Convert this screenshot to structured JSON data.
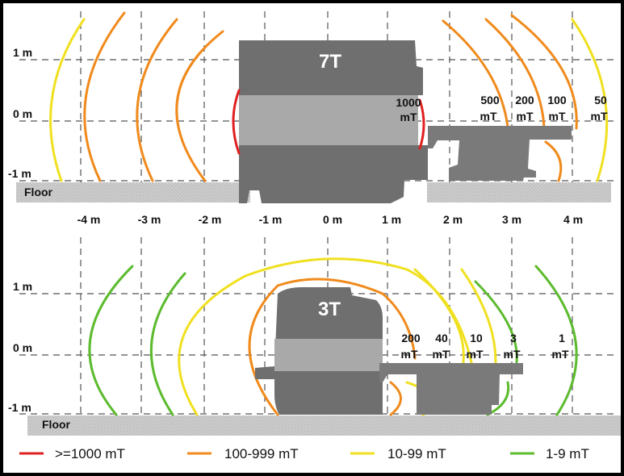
{
  "top_panel": {
    "magnet_label": "7T",
    "y_labels": [
      "1 m",
      "0 m",
      "-1 m"
    ],
    "floor_label": "Floor",
    "x_labels": [
      "-4 m",
      "-3 m",
      "-2 m",
      "-1 m",
      "0 m",
      "1 m",
      "2 m",
      "3 m",
      "4 m"
    ],
    "field_labels": [
      {
        "value": "1000",
        "unit": "mT"
      },
      {
        "value": "500",
        "unit": "mT"
      },
      {
        "value": "200",
        "unit": "mT"
      },
      {
        "value": "100",
        "unit": "mT"
      },
      {
        "value": "50",
        "unit": "mT"
      }
    ]
  },
  "bottom_panel": {
    "magnet_label": "3T",
    "y_labels": [
      "1 m",
      "0 m",
      "-1 m"
    ],
    "floor_label": "Floor",
    "field_labels": [
      {
        "value": "200",
        "unit": "mT"
      },
      {
        "value": "40",
        "unit": "mT"
      },
      {
        "value": "10",
        "unit": "mT"
      },
      {
        "value": "3",
        "unit": "mT"
      },
      {
        "value": "1",
        "unit": "mT"
      }
    ]
  },
  "legend": [
    {
      "label": ">=1000 mT",
      "color": "#e02020"
    },
    {
      "label": "100-999 mT",
      "color": "#f08a1c"
    },
    {
      "label": "10-99 mT",
      "color": "#f0e020"
    },
    {
      "label": "1-9 mT",
      "color": "#5cbb2e"
    }
  ]
}
